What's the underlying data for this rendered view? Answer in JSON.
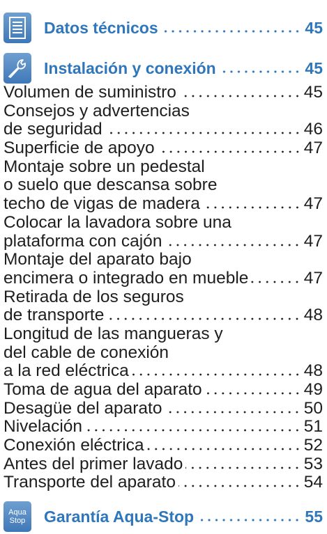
{
  "sections": [
    {
      "title": "Datos técnicos",
      "page": "45"
    },
    {
      "title": "Instalación y conexión",
      "page": "45",
      "entries": [
        {
          "lines": [
            "Volumen de suministro"
          ],
          "page": "45"
        },
        {
          "lines": [
            "Consejos y advertencias",
            "de seguridad"
          ],
          "page": "46"
        },
        {
          "lines": [
            "Superficie de apoyo"
          ],
          "page": "47"
        },
        {
          "lines": [
            "Montaje sobre un pedestal",
            "o suelo que descansa sobre",
            "techo de vigas de madera"
          ],
          "page": "47"
        },
        {
          "lines": [
            "Colocar la lavadora sobre una",
            "plataforma con cajón"
          ],
          "page": "47"
        },
        {
          "lines": [
            "Montaje del aparato bajo",
            "encimera o integrado en mueble"
          ],
          "page": "47"
        },
        {
          "lines": [
            "Retirada de los seguros",
            "de transporte"
          ],
          "page": "48"
        },
        {
          "lines": [
            "Longitud de las mangueras y",
            "del cable de conexión",
            "a la red eléctrica"
          ],
          "page": "48"
        },
        {
          "lines": [
            "Toma de agua del aparato"
          ],
          "page": "49"
        },
        {
          "lines": [
            "Desagüe del aparato"
          ],
          "page": "50"
        },
        {
          "lines": [
            "Nivelación"
          ],
          "page": "51"
        },
        {
          "lines": [
            "Conexión eléctrica"
          ],
          "page": "52"
        },
        {
          "lines": [
            "Antes del primer lavado"
          ],
          "page": "53"
        },
        {
          "lines": [
            "Transporte del aparato"
          ],
          "page": "54"
        }
      ]
    },
    {
      "title": "Garantía Aqua-Stop",
      "page": "55",
      "icon_text": [
        "Aqua",
        "Stop"
      ]
    }
  ]
}
